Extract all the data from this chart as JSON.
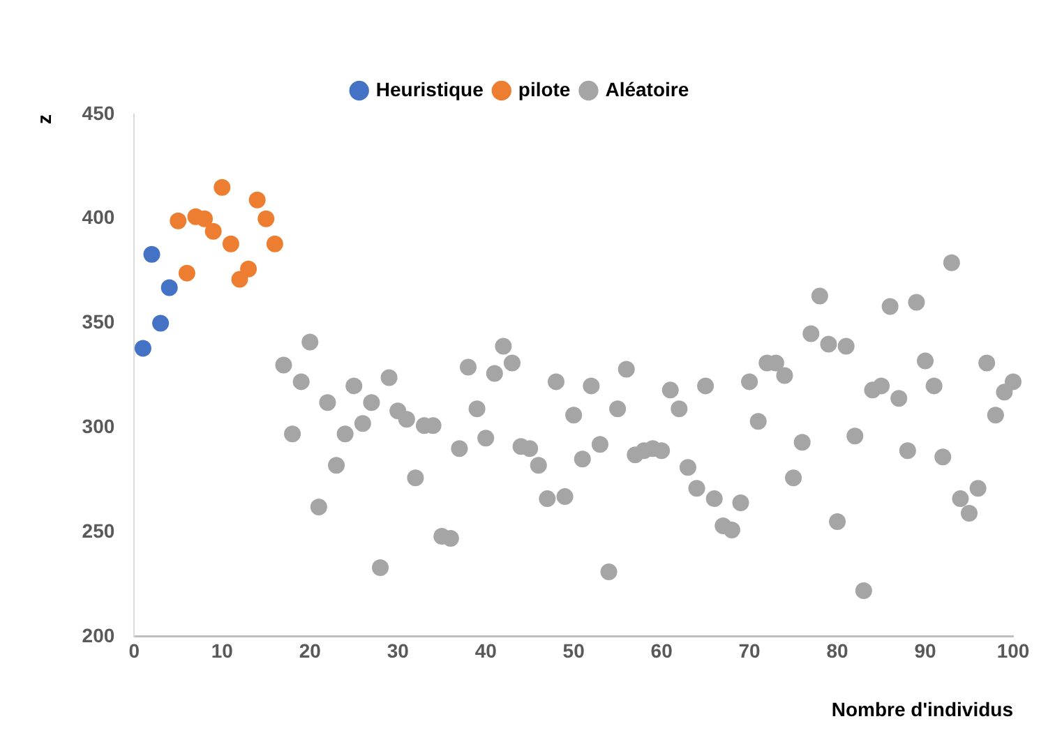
{
  "chart_data": {
    "type": "scatter",
    "xlabel": "Nombre d'individus",
    "ylabel": "z",
    "xlim": [
      0,
      100
    ],
    "xticks": [
      0,
      10,
      20,
      30,
      40,
      50,
      60,
      70,
      80,
      90,
      100
    ],
    "ylim": [
      200,
      450
    ],
    "yticks": [
      200,
      250,
      300,
      350,
      400,
      450
    ],
    "grid": false,
    "legend": "top",
    "marker": "circle",
    "series": [
      {
        "name": "Heuristique",
        "color": "#4472c4",
        "x": [
          1,
          2,
          3,
          4
        ],
        "values": [
          338,
          383,
          350,
          367
        ]
      },
      {
        "name": "pilote",
        "color": "#ed7d31",
        "x": [
          5,
          6,
          7,
          8,
          9,
          10,
          11,
          12,
          13,
          14,
          15,
          16
        ],
        "values": [
          399,
          374,
          401,
          400,
          394,
          415,
          388,
          371,
          376,
          409,
          400,
          388
        ]
      },
      {
        "name": "Aléatoire",
        "color": "#a5a5a5",
        "x": [
          17,
          18,
          19,
          20,
          21,
          22,
          23,
          24,
          25,
          26,
          27,
          28,
          29,
          30,
          31,
          32,
          33,
          34,
          35,
          36,
          37,
          38,
          39,
          40,
          41,
          42,
          43,
          44,
          45,
          46,
          47,
          48,
          49,
          50,
          51,
          52,
          53,
          54,
          55,
          56,
          57,
          58,
          59,
          60,
          61,
          62,
          63,
          64,
          65,
          66,
          67,
          68,
          69,
          70,
          71,
          72,
          73,
          74,
          75,
          76,
          77,
          78,
          79,
          80,
          81,
          82,
          83,
          84,
          85,
          86,
          87,
          88,
          89,
          90,
          91,
          92,
          93,
          94,
          95,
          96,
          97,
          98,
          99,
          100
        ],
        "values": [
          330,
          297,
          322,
          341,
          262,
          312,
          282,
          297,
          320,
          302,
          312,
          233,
          324,
          308,
          304,
          276,
          301,
          301,
          248,
          247,
          290,
          329,
          309,
          295,
          326,
          339,
          331,
          291,
          290,
          282,
          266,
          322,
          267,
          306,
          285,
          320,
          292,
          231,
          309,
          328,
          287,
          289,
          290,
          289,
          318,
          309,
          281,
          271,
          320,
          266,
          253,
          251,
          264,
          322,
          303,
          331,
          331,
          325,
          276,
          293,
          345,
          363,
          340,
          255,
          339,
          296,
          222,
          318,
          320,
          358,
          314,
          289,
          360,
          332,
          320,
          286,
          379,
          266,
          259,
          271,
          331,
          306,
          317,
          322
        ]
      }
    ]
  }
}
